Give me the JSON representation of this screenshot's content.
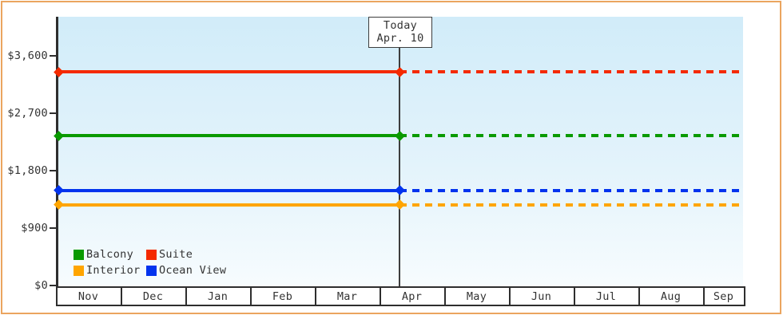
{
  "frame": {
    "border_color": "#eba55f",
    "background": "#ffffff"
  },
  "axis_color": "#2e2e2e",
  "text_color": "#333333",
  "plot_gradient": {
    "top": "#d1ecf9",
    "bottom": "#f7fcfe"
  },
  "legend": {
    "items": [
      {
        "label": "Balcony",
        "color": "#0a9a00"
      },
      {
        "label": "Suite",
        "color": "#f42a00"
      },
      {
        "label": "Interior",
        "color": "#ffa500"
      },
      {
        "label": "Ocean View",
        "color": "#0233ee"
      }
    ]
  },
  "chart_data": {
    "type": "line",
    "title": "",
    "x_categories": [
      "Nov",
      "Dec",
      "Jan",
      "Feb",
      "Mar",
      "Apr",
      "May",
      "Jun",
      "Jul",
      "Aug",
      "Sep"
    ],
    "x_end_partial_month": "Sep",
    "ylim": [
      0,
      3600
    ],
    "y_ticks": [
      0,
      900,
      1800,
      2700,
      3600
    ],
    "y_tick_labels": [
      "$0",
      "$900",
      "$1,800",
      "$2,700",
      "$3,600"
    ],
    "grid": false,
    "legend_position": "inside-bottom-left",
    "today_annotation": {
      "line1": "Today",
      "line2": "Apr. 10",
      "month": "Apr",
      "day": 10
    },
    "line_style": "solid before today, dotted after today",
    "series": [
      {
        "name": "Suite",
        "color": "#f42a00",
        "value": 3350,
        "constant_across_visible_months": true
      },
      {
        "name": "Balcony",
        "color": "#0a9a00",
        "value": 2350,
        "constant_across_visible_months": true
      },
      {
        "name": "Ocean View",
        "color": "#0233ee",
        "value": 1490,
        "constant_across_visible_months": true
      },
      {
        "name": "Interior",
        "color": "#ffa500",
        "value": 1265,
        "constant_across_visible_months": true
      }
    ]
  }
}
